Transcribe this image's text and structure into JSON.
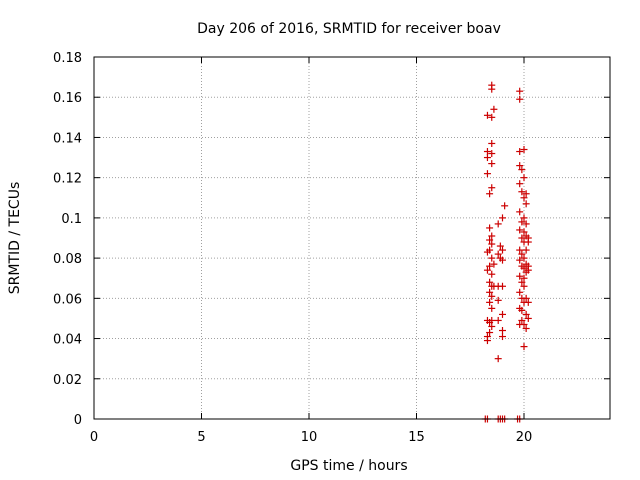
{
  "chart_data": {
    "type": "scatter",
    "title": "Day 206 of 2016, SRMTID for receiver boav",
    "xlabel": "GPS time / hours",
    "ylabel": "SRMTID / TECUs",
    "xlim": [
      0,
      24
    ],
    "ylim": [
      0,
      0.18
    ],
    "xticks": [
      "0",
      "5",
      "10",
      "15",
      "20"
    ],
    "yticks": [
      "0",
      "0.02",
      "0.04",
      "0.06",
      "0.08",
      "0.1",
      "0.12",
      "0.14",
      "0.16",
      "0.18"
    ],
    "grid": true,
    "marker": "plus",
    "color": "#cc0000",
    "points": [
      [
        18.2,
        0.0
      ],
      [
        18.3,
        0.0
      ],
      [
        18.8,
        0.0
      ],
      [
        18.9,
        0.0
      ],
      [
        19.0,
        0.0
      ],
      [
        19.1,
        0.0
      ],
      [
        19.7,
        0.0
      ],
      [
        19.8,
        0.0
      ],
      [
        18.3,
        0.151
      ],
      [
        18.3,
        0.133
      ],
      [
        18.3,
        0.13
      ],
      [
        18.3,
        0.122
      ],
      [
        18.3,
        0.083
      ],
      [
        18.3,
        0.074
      ],
      [
        18.3,
        0.049
      ],
      [
        18.3,
        0.041
      ],
      [
        18.3,
        0.039
      ],
      [
        18.4,
        0.112
      ],
      [
        18.4,
        0.095
      ],
      [
        18.4,
        0.089
      ],
      [
        18.4,
        0.084
      ],
      [
        18.4,
        0.076
      ],
      [
        18.4,
        0.068
      ],
      [
        18.4,
        0.063
      ],
      [
        18.4,
        0.058
      ],
      [
        18.4,
        0.048
      ],
      [
        18.4,
        0.043
      ],
      [
        18.5,
        0.166
      ],
      [
        18.5,
        0.164
      ],
      [
        18.5,
        0.15
      ],
      [
        18.5,
        0.137
      ],
      [
        18.5,
        0.132
      ],
      [
        18.5,
        0.127
      ],
      [
        18.5,
        0.115
      ],
      [
        18.5,
        0.091
      ],
      [
        18.5,
        0.087
      ],
      [
        18.5,
        0.08
      ],
      [
        18.5,
        0.072
      ],
      [
        18.5,
        0.066
      ],
      [
        18.5,
        0.061
      ],
      [
        18.5,
        0.055
      ],
      [
        18.5,
        0.049
      ],
      [
        18.5,
        0.046
      ],
      [
        18.6,
        0.154
      ],
      [
        18.6,
        0.077
      ],
      [
        18.6,
        0.066
      ],
      [
        18.8,
        0.097
      ],
      [
        18.8,
        0.082
      ],
      [
        18.8,
        0.066
      ],
      [
        18.8,
        0.059
      ],
      [
        18.8,
        0.049
      ],
      [
        18.8,
        0.03
      ],
      [
        18.9,
        0.086
      ],
      [
        18.9,
        0.08
      ],
      [
        19.0,
        0.1
      ],
      [
        19.0,
        0.084
      ],
      [
        19.0,
        0.079
      ],
      [
        19.0,
        0.066
      ],
      [
        19.0,
        0.052
      ],
      [
        19.0,
        0.044
      ],
      [
        19.0,
        0.041
      ],
      [
        19.1,
        0.106
      ],
      [
        19.8,
        0.163
      ],
      [
        19.8,
        0.159
      ],
      [
        19.8,
        0.133
      ],
      [
        19.8,
        0.126
      ],
      [
        19.8,
        0.117
      ],
      [
        19.8,
        0.103
      ],
      [
        19.8,
        0.094
      ],
      [
        19.8,
        0.084
      ],
      [
        19.8,
        0.079
      ],
      [
        19.8,
        0.071
      ],
      [
        19.8,
        0.063
      ],
      [
        19.8,
        0.055
      ],
      [
        19.8,
        0.047
      ],
      [
        19.9,
        0.124
      ],
      [
        19.9,
        0.113
      ],
      [
        19.9,
        0.098
      ],
      [
        19.9,
        0.09
      ],
      [
        19.9,
        0.082
      ],
      [
        19.9,
        0.076
      ],
      [
        19.9,
        0.068
      ],
      [
        19.9,
        0.06
      ],
      [
        19.9,
        0.054
      ],
      [
        19.9,
        0.049
      ],
      [
        20.0,
        0.134
      ],
      [
        20.0,
        0.12
      ],
      [
        20.0,
        0.11
      ],
      [
        20.0,
        0.1
      ],
      [
        20.0,
        0.093
      ],
      [
        20.0,
        0.088
      ],
      [
        20.0,
        0.08
      ],
      [
        20.0,
        0.075
      ],
      [
        20.0,
        0.07
      ],
      [
        20.0,
        0.066
      ],
      [
        20.0,
        0.058
      ],
      [
        20.0,
        0.047
      ],
      [
        20.0,
        0.036
      ],
      [
        20.1,
        0.112
      ],
      [
        20.1,
        0.107
      ],
      [
        20.1,
        0.097
      ],
      [
        20.1,
        0.091
      ],
      [
        20.1,
        0.084
      ],
      [
        20.1,
        0.077
      ],
      [
        20.1,
        0.073
      ],
      [
        20.1,
        0.06
      ],
      [
        20.1,
        0.052
      ],
      [
        20.1,
        0.045
      ],
      [
        20.2,
        0.09
      ],
      [
        20.2,
        0.088
      ],
      [
        20.2,
        0.076
      ],
      [
        20.2,
        0.074
      ],
      [
        20.2,
        0.058
      ],
      [
        20.2,
        0.05
      ]
    ]
  }
}
